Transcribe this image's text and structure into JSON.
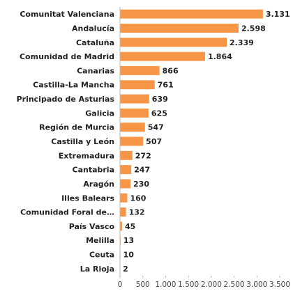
{
  "chart_data": {
    "type": "barh",
    "categories": [
      "Comunitat Valenciana",
      "Andalucía",
      "Cataluña",
      "Comunidad de Madrid",
      "Canarias",
      "Castilla-La Mancha",
      "Principado de Asturias",
      "Galicia",
      "Región de Murcia",
      "Castilla y León",
      "Extremadura",
      "Cantabria",
      "Aragón",
      "Illes Balears",
      "Comunidad Foral de…",
      "País Vasco",
      "Melilla",
      "Ceuta",
      "La Rioja"
    ],
    "values": [
      3131,
      2598,
      2339,
      1864,
      866,
      761,
      639,
      625,
      547,
      507,
      272,
      247,
      230,
      160,
      132,
      45,
      13,
      10,
      2
    ],
    "value_labels": [
      "3.131",
      "2.598",
      "2.339",
      "1.864",
      "866",
      "761",
      "639",
      "625",
      "547",
      "507",
      "272",
      "247",
      "230",
      "160",
      "132",
      "45",
      "13",
      "10",
      "2"
    ],
    "color": "#f79646",
    "xlim": [
      0,
      3500
    ],
    "xticks": [
      0,
      500,
      {
        "value": 1000,
        "label": "1.000"
      },
      {
        "value": 1500,
        "label": "1.500"
      },
      {
        "value": 2000,
        "label": "2.000"
      },
      {
        "value": 2500,
        "label": "2.500"
      },
      {
        "value": 3000,
        "label": "3.000"
      },
      {
        "value": 3500,
        "label": "3.500"
      }
    ],
    "grid": false
  }
}
